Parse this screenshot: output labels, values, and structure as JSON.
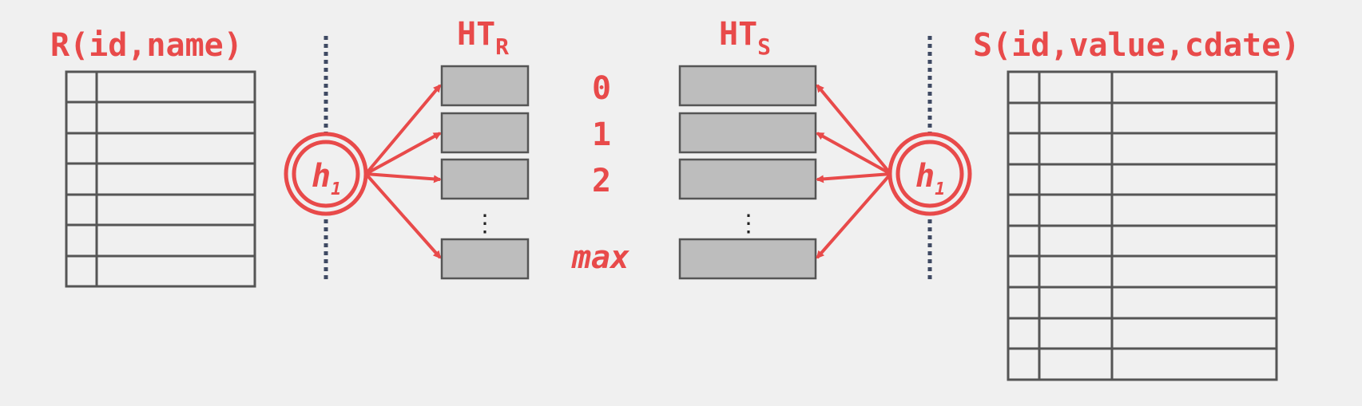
{
  "left_table": {
    "title": "R(id,name)",
    "rows": 7
  },
  "right_table": {
    "title": "S(id,value,cdate)",
    "rows": 10
  },
  "hash_tables": {
    "left_label": "HT",
    "left_sub": "R",
    "right_label": "HT",
    "right_sub": "S",
    "buckets": [
      "0",
      "1",
      "2",
      "max"
    ],
    "ellipsis": "⋮"
  },
  "hash_function": {
    "label": "h",
    "sub": "1"
  },
  "colors": {
    "accent": "#e84a4a",
    "divider": "#3f4a63",
    "bucket_fill": "#bdbdbd",
    "line": "#555555"
  }
}
